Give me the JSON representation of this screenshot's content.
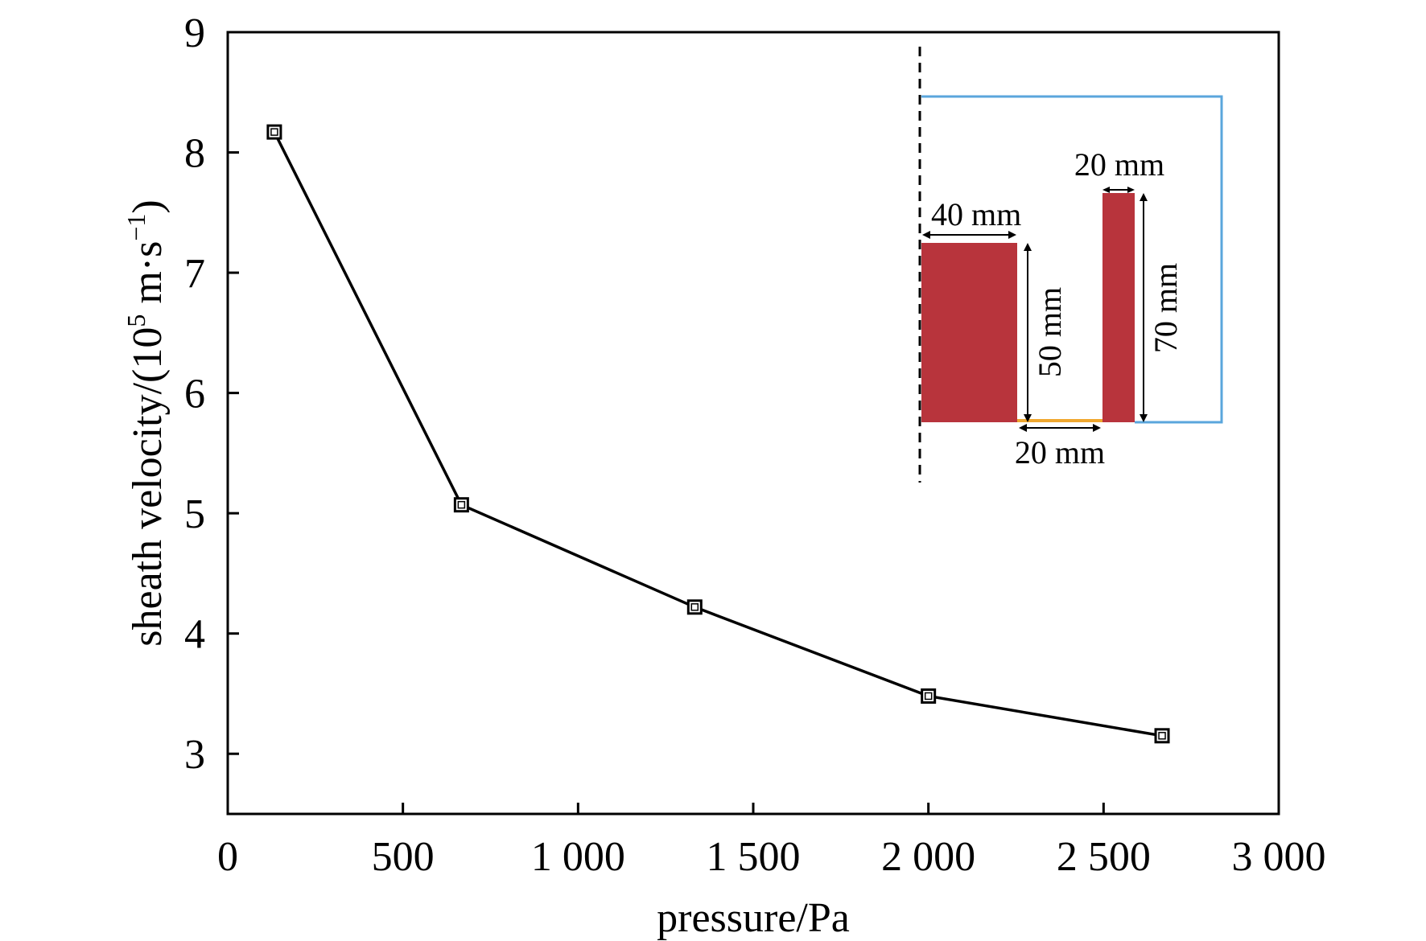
{
  "chart_data": {
    "type": "line",
    "title": "",
    "xlabel": "pressure/Pa",
    "ylabel": {
      "prefix": "sheath velocity/(10",
      "exp": "5",
      "mid": " m·s",
      "unit_exp": "−1",
      "suffix": ")"
    },
    "xlim": [
      0,
      3000
    ],
    "ylim": [
      2.5,
      9
    ],
    "x_ticks": [
      {
        "value": 0,
        "label": "0"
      },
      {
        "value": 500,
        "label": "500"
      },
      {
        "value": 1000,
        "label": "1 000"
      },
      {
        "value": 1500,
        "label": "1 500"
      },
      {
        "value": 2000,
        "label": "2 000"
      },
      {
        "value": 2500,
        "label": "2 500"
      },
      {
        "value": 3000,
        "label": "3 000"
      }
    ],
    "y_ticks": [
      {
        "value": 3,
        "label": "3"
      },
      {
        "value": 4,
        "label": "4"
      },
      {
        "value": 5,
        "label": "5"
      },
      {
        "value": 6,
        "label": "6"
      },
      {
        "value": 7,
        "label": "7"
      },
      {
        "value": 8,
        "label": "8"
      },
      {
        "value": 9,
        "label": "9"
      }
    ],
    "grid": false,
    "series": [
      {
        "marker": "square",
        "color": "#000000",
        "x": [
          133,
          667,
          1333,
          2000,
          2667
        ],
        "y": [
          8.17,
          5.07,
          4.22,
          3.48,
          3.15
        ]
      }
    ]
  },
  "inset": {
    "labels": {
      "width_large": "40 mm",
      "height_large": "50 mm",
      "gap": "20 mm",
      "width_small": "20 mm",
      "height_small": "70 mm"
    },
    "colors": {
      "electrode": "#b8343c",
      "boundary": "#5aa6dc",
      "gap_line": "#f0a830",
      "axis": "#000000"
    }
  }
}
